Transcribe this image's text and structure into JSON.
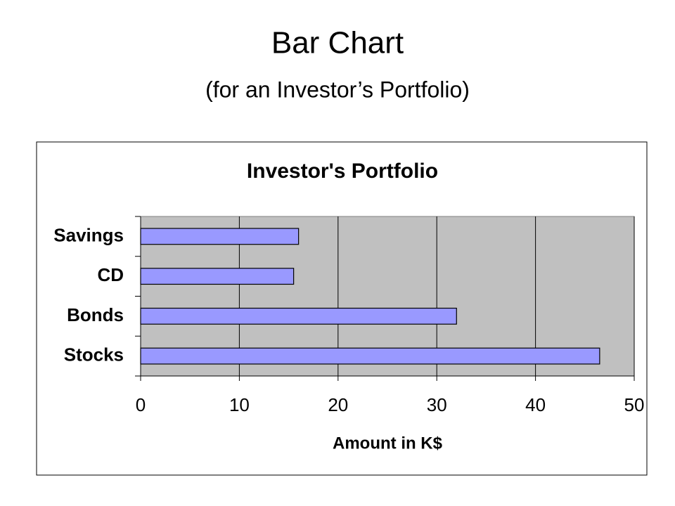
{
  "slide_title": "Bar Chart",
  "slide_subtitle": "(for an Investor’s Portfolio)",
  "chart_data": {
    "type": "barh",
    "title": "Investor's Portfolio",
    "x_label": "Amount in K$",
    "categories": [
      "Savings",
      "CD",
      "Bonds",
      "Stocks"
    ],
    "values": [
      16,
      15.5,
      32,
      46.5
    ],
    "color": "#9999ff",
    "xlim": [
      0,
      50
    ],
    "xticks": [
      0,
      10,
      20,
      30,
      40,
      50
    ],
    "grid": true
  }
}
